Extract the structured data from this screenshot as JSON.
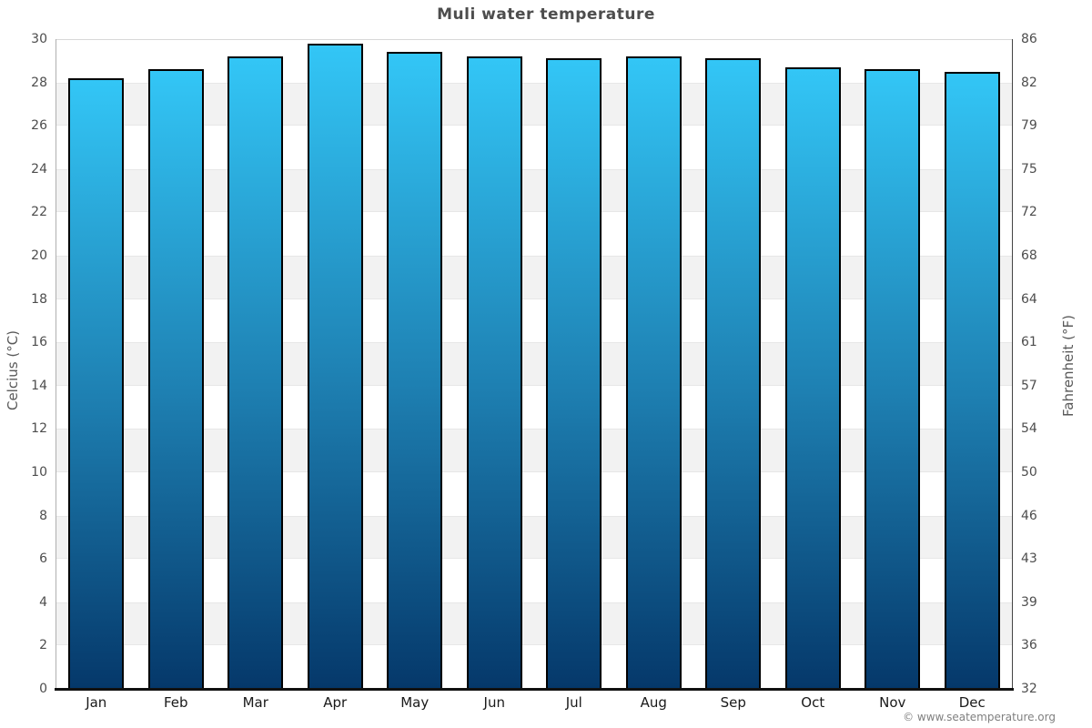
{
  "title": "Muli water temperature",
  "copyright": "© www.seatemperature.org",
  "axes": {
    "left_title": "Celcius (°C)",
    "right_title": "Fahrenheit (°F)"
  },
  "chart_data": {
    "type": "bar",
    "title": "Muli water temperature",
    "categories": [
      "Jan",
      "Feb",
      "Mar",
      "Apr",
      "May",
      "Jun",
      "Jul",
      "Aug",
      "Sep",
      "Oct",
      "Nov",
      "Dec"
    ],
    "values": [
      28.2,
      28.6,
      29.2,
      29.8,
      29.4,
      29.2,
      29.1,
      29.2,
      29.1,
      28.7,
      28.6,
      28.5
    ],
    "series_unit": "°C",
    "xlabel": "",
    "ylabel_left": "Celcius (°C)",
    "ylabel_right": "Fahrenheit (°F)",
    "ylim_celsius": [
      0,
      30
    ],
    "yticks_celsius": [
      0,
      2,
      4,
      6,
      8,
      10,
      12,
      14,
      16,
      18,
      20,
      22,
      24,
      26,
      28,
      30
    ],
    "yticks_fahrenheit_labels": [
      "32",
      "36",
      "39",
      "43",
      "46",
      "50",
      "54",
      "57",
      "61",
      "64",
      "68",
      "72",
      "75",
      "79",
      "82",
      "86"
    ],
    "grid": "alternating horizontal bands every 2°C",
    "gray_band_start_values_celsius": [
      2,
      6,
      10,
      14,
      18,
      22,
      26
    ],
    "legend": "none"
  },
  "colors": {
    "bar_top": "#33c6f6",
    "bar_mid": "#1e80b2",
    "bar_bottom": "#05386a",
    "bar_border": "#000000",
    "stripe_gray": "#f2f2f2",
    "title_text": "#4d4d4d",
    "tick_text": "#4d4d4d",
    "month_text": "#1a1a1a",
    "axis_title_text": "#595959",
    "copyright_text": "#808080"
  }
}
